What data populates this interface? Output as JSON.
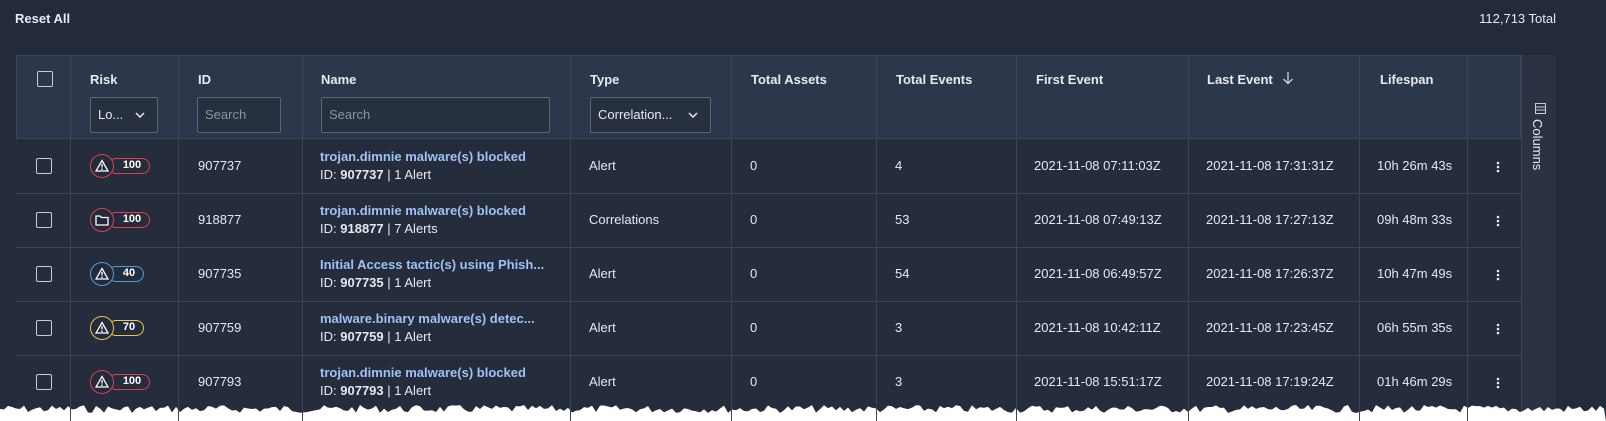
{
  "header": {
    "reset": "Reset All",
    "total": "112,713 Total"
  },
  "table": {
    "columns": [
      "Risk",
      "ID",
      "Name",
      "Type",
      "Total Assets",
      "Total Events",
      "First Event",
      "Last Event",
      "Lifespan"
    ],
    "filters": {
      "risk": "Lo...",
      "id": "Search",
      "name": "Search",
      "type": "Correlation..."
    },
    "rows": [
      {
        "risk": {
          "icon": "alert",
          "score": 100,
          "color": "#e0414f"
        },
        "id": "907737",
        "name": "trojan.dimnie malware(s) blocked",
        "detail_prefix": "ID:",
        "detail_id": "907737",
        "detail_suffix": "| 1 Alert",
        "type": "Alert",
        "total_assets": 0,
        "total_events": 4,
        "first_event": "2021-11-08 07:11:03Z",
        "last_event": "2021-11-08 17:31:31Z",
        "lifespan": "10h 26m 43s"
      },
      {
        "risk": {
          "icon": "folder",
          "score": 100,
          "color": "#e0414f"
        },
        "id": "918877",
        "name": "trojan.dimnie malware(s) blocked",
        "detail_prefix": "ID:",
        "detail_id": "918877",
        "detail_suffix": "| 7 Alerts",
        "type": "Correlations",
        "total_assets": 0,
        "total_events": 53,
        "first_event": "2021-11-08 07:49:13Z",
        "last_event": "2021-11-08 17:27:13Z",
        "lifespan": "09h 48m 33s"
      },
      {
        "risk": {
          "icon": "alert",
          "score": 40,
          "color": "#4aa3df"
        },
        "id": "907735",
        "name": "Initial Access tactic(s) using Phish...",
        "detail_prefix": "ID:",
        "detail_id": "907735",
        "detail_suffix": "| 1 Alert",
        "type": "Alert",
        "total_assets": 0,
        "total_events": 54,
        "first_event": "2021-11-08 06:49:57Z",
        "last_event": "2021-11-08 17:26:37Z",
        "lifespan": "10h 47m 49s"
      },
      {
        "risk": {
          "icon": "alert",
          "score": 70,
          "color": "#e8c84a"
        },
        "id": "907759",
        "name": "malware.binary malware(s) detec...",
        "detail_prefix": "ID:",
        "detail_id": "907759",
        "detail_suffix": "| 1 Alert",
        "type": "Alert",
        "total_assets": 0,
        "total_events": 3,
        "first_event": "2021-11-08 10:42:11Z",
        "last_event": "2021-11-08 17:23:45Z",
        "lifespan": "06h 55m 35s"
      },
      {
        "risk": {
          "icon": "alert",
          "score": 100,
          "color": "#e0414f"
        },
        "id": "907793",
        "name": "trojan.dimnie malware(s) blocked",
        "detail_prefix": "ID:",
        "detail_id": "907793",
        "detail_suffix": "| 1 Alert",
        "type": "Alert",
        "total_assets": 0,
        "total_events": 3,
        "first_event": "2021-11-08 15:51:17Z",
        "last_event": "2021-11-08 17:19:24Z",
        "lifespan": "01h 46m 29s"
      }
    ]
  },
  "side_panel": "Columns"
}
